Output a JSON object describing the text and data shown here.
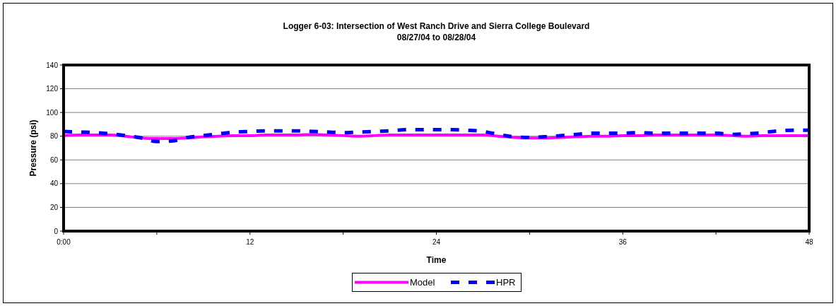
{
  "chart_data": {
    "type": "line",
    "title": "Logger 6-03: Intersection of West Ranch Drive and Sierra College Boulevard",
    "subtitle": "08/27/04 to 08/28/04",
    "xlabel": "Time",
    "ylabel": "Pressure (psi)",
    "x": [
      0,
      1,
      2,
      3,
      4,
      5,
      6,
      7,
      8,
      9,
      10,
      11,
      12,
      13,
      14,
      15,
      16,
      17,
      18,
      19,
      20,
      21,
      22,
      23,
      24,
      25,
      26,
      27,
      28,
      29,
      30,
      31,
      32,
      33,
      34,
      35,
      36,
      37,
      38,
      39,
      40,
      41,
      42,
      43,
      44,
      45,
      46,
      47,
      48
    ],
    "xlim": [
      0,
      48
    ],
    "xticks": [
      {
        "value": 0,
        "label": "0:00"
      },
      {
        "value": 6,
        "label": null
      },
      12,
      {
        "value": 18,
        "label": null
      },
      24,
      {
        "value": 30,
        "label": null
      },
      36,
      {
        "value": 42,
        "label": null
      },
      48
    ],
    "ylim": [
      0,
      140
    ],
    "yticks": [
      0,
      20,
      40,
      60,
      80,
      100,
      120,
      140
    ],
    "grid": "y",
    "legend": "bottom",
    "series": [
      {
        "name": "Model",
        "color": "#ff00ff",
        "line_style": "solid",
        "values": [
          80.5,
          81,
          81,
          81,
          80,
          78.5,
          78,
          78,
          78.5,
          79.5,
          80,
          80.5,
          80.5,
          81,
          81,
          81,
          81.5,
          81,
          80.5,
          80,
          80.5,
          81,
          81,
          81,
          81,
          81,
          81,
          81,
          80,
          79,
          78.5,
          78.5,
          79,
          79.5,
          80,
          80,
          80.5,
          80.5,
          81,
          81,
          81,
          81,
          81,
          80.5,
          80,
          80.5,
          80.5,
          80.5,
          80.5
        ]
      },
      {
        "name": "HPR",
        "color": "#0000ff",
        "line_style": "dashed",
        "values": [
          84,
          83.5,
          83,
          82,
          80.5,
          78.5,
          75.5,
          76,
          79,
          80.5,
          82,
          83.5,
          84,
          84.5,
          84.5,
          84.5,
          84,
          83.5,
          83,
          83.5,
          84,
          84.5,
          85.5,
          85.5,
          85.5,
          85.5,
          85,
          84,
          81.5,
          79.5,
          79,
          79.5,
          80.5,
          81.5,
          82.5,
          82.5,
          82.5,
          83,
          82.5,
          82.5,
          82.5,
          82.5,
          82.5,
          81.5,
          82,
          83,
          84.5,
          85,
          85
        ]
      }
    ]
  }
}
